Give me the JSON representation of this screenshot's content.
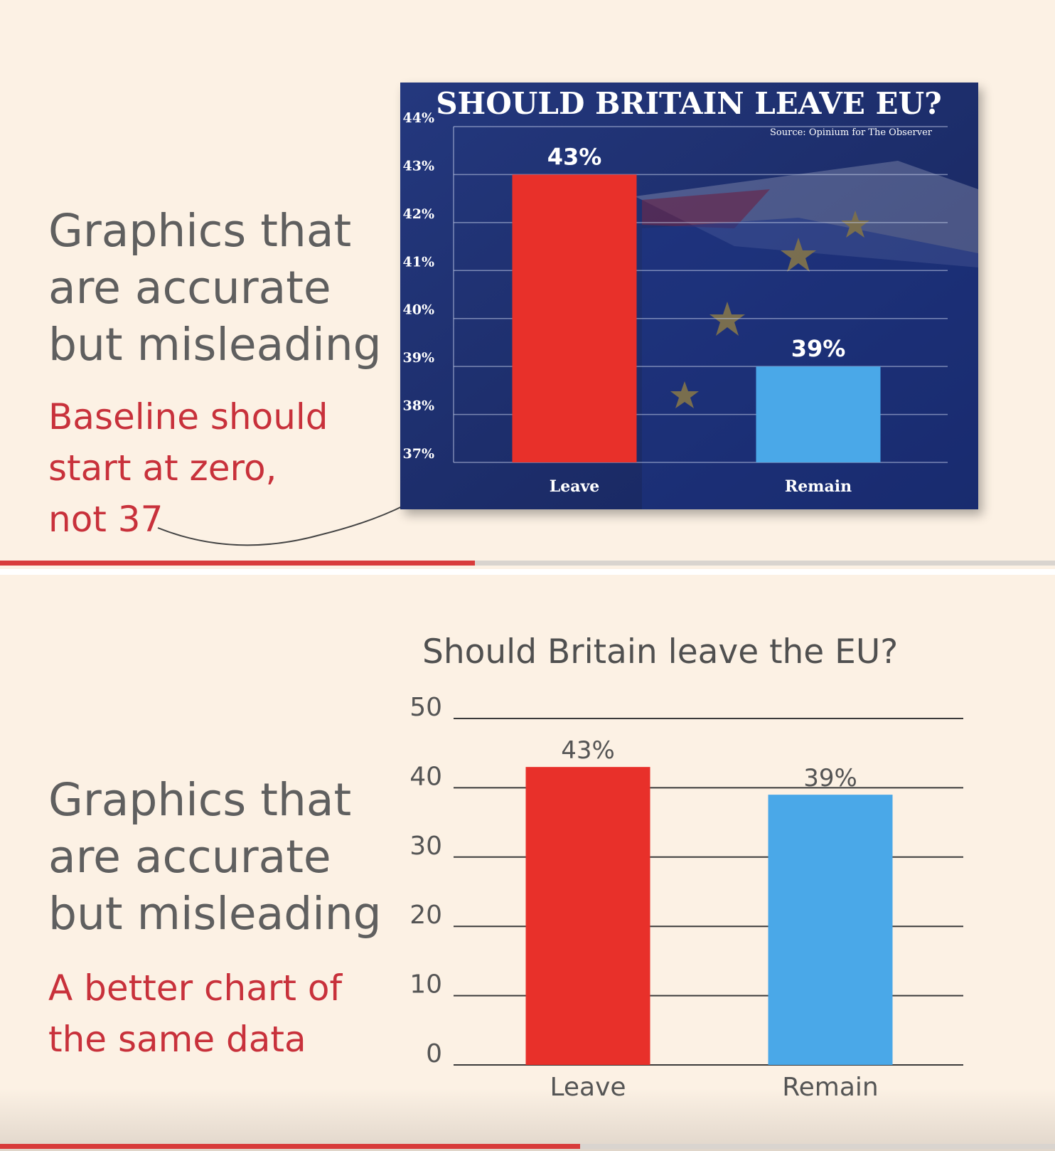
{
  "slides": [
    {
      "heading": "Graphics that\nare accurate\nbut misleading",
      "subheading": "Baseline should\nstart at zero,\nnot 37",
      "progress": 0.45
    },
    {
      "heading": "Graphics that\nare accurate\nbut misleading",
      "subheading": "A better chart of\nthe same data",
      "progress": 0.55
    }
  ],
  "colors": {
    "background": "#fcf1e4",
    "heading": "#5f5f5f",
    "accent_text": "#c8313b",
    "leave_bar": "#e8302a",
    "remain_bar": "#4aa8e8",
    "navy": "#1d2d6a"
  },
  "chart_data": [
    {
      "type": "bar",
      "title": "SHOULD BRITAIN LEAVE EU?",
      "source": "Source: Opinium for The Observer",
      "categories": [
        "Leave",
        "Remain"
      ],
      "values": [
        43,
        39
      ],
      "value_labels": [
        "43%",
        "39%"
      ],
      "ylim": [
        37,
        44
      ],
      "yticks": [
        37,
        38,
        39,
        40,
        41,
        42,
        43,
        44
      ],
      "ytick_labels": [
        "37%",
        "38%",
        "39%",
        "40%",
        "41%",
        "42%",
        "43%",
        "44%"
      ],
      "bar_colors": [
        "#e8302a",
        "#4aa8e8"
      ],
      "grid": true
    },
    {
      "type": "bar",
      "title": "Should Britain leave the EU?",
      "categories": [
        "Leave",
        "Remain"
      ],
      "values": [
        43,
        39
      ],
      "value_labels": [
        "43%",
        "39%"
      ],
      "ylim": [
        0,
        50
      ],
      "yticks": [
        0,
        10,
        20,
        30,
        40,
        50
      ],
      "ytick_labels": [
        "0",
        "10",
        "20",
        "30",
        "40",
        "50"
      ],
      "bar_colors": [
        "#e8302a",
        "#4aa8e8"
      ],
      "grid": true
    }
  ]
}
